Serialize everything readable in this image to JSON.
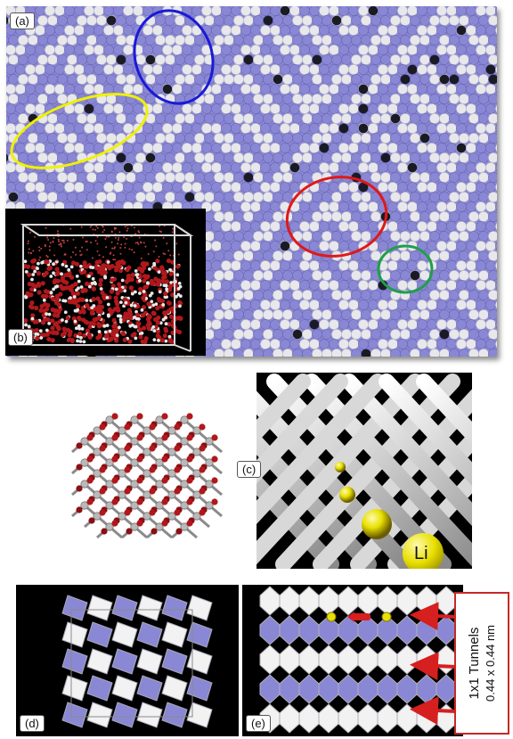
{
  "panels": {
    "a": {
      "label": "(a)"
    },
    "b": {
      "label": "(b)"
    },
    "c": {
      "label": "(c)",
      "ion_label": "Li"
    },
    "d": {
      "label": "(d)"
    },
    "e": {
      "label": "(e)"
    }
  },
  "tunnel_annotation": {
    "line1": "1x1 Tunnels",
    "line2": "0.44 x 0.44 nm"
  },
  "colors": {
    "blue_atom": "#8a88d4",
    "white_atom": "#e8e8ec",
    "highlight_blue": "#1a1ad6",
    "highlight_yellow": "#f0f000",
    "highlight_red": "#e01818",
    "highlight_green": "#1f9e4a",
    "arrow_red": "#d61f1f",
    "oxygen_red": "#b0181c",
    "lithium_yellow": "#e8e000"
  }
}
